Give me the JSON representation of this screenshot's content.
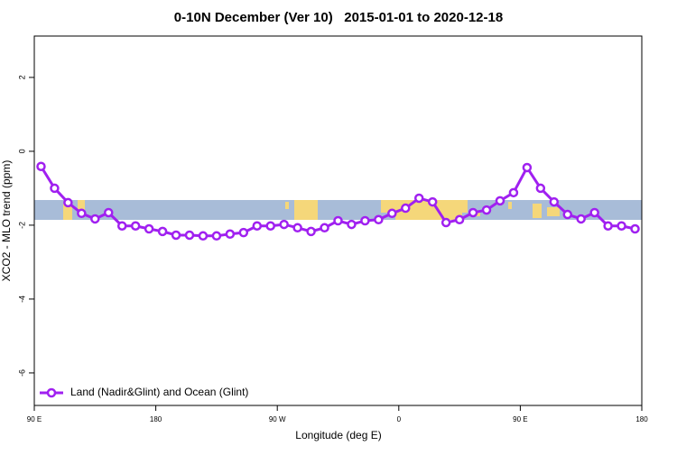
{
  "chart_data": {
    "type": "line",
    "title": "0-10N December (Ver 10)   2015-01-01 to 2020-12-18",
    "xlabel": "Longitude (deg E)",
    "ylabel": "XCO2 - MLO trend (ppm)",
    "x": [
      95,
      105,
      115,
      125,
      135,
      145,
      155,
      165,
      175,
      185,
      195,
      205,
      215,
      225,
      235,
      245,
      255,
      265,
      275,
      285,
      295,
      305,
      315,
      325,
      335,
      345,
      355,
      365,
      375,
      385,
      395,
      405,
      415,
      425,
      435,
      445,
      455,
      465,
      475,
      485,
      495,
      505,
      515,
      525,
      535
    ],
    "series": [
      {
        "name": "Land (Nadir&Glint) and Ocean (Glint)",
        "color": "#a020f0",
        "values": [
          -0.41,
          -1.0,
          -1.39,
          -1.68,
          -1.83,
          -1.66,
          -2.02,
          -2.02,
          -2.1,
          -2.17,
          -2.27,
          -2.27,
          -2.29,
          -2.29,
          -2.24,
          -2.2,
          -2.02,
          -2.02,
          -1.98,
          -2.07,
          -2.17,
          -2.07,
          -1.88,
          -1.98,
          -1.88,
          -1.85,
          -1.68,
          -1.54,
          -1.27,
          -1.37,
          -1.93,
          -1.85,
          -1.66,
          -1.59,
          -1.34,
          -1.12,
          -0.44,
          -1.0,
          -1.37,
          -1.71,
          -1.83,
          -1.66,
          -2.02,
          -2.02,
          -2.1
        ]
      }
    ],
    "xlim": [
      90,
      540
    ],
    "xticks": [
      {
        "value": 90,
        "label": "90 E"
      },
      180,
      {
        "value": 270,
        "label": "90 W"
      },
      {
        "value": 360,
        "label": "0"
      },
      {
        "value": 450,
        "label": "90 E"
      },
      {
        "value": 540,
        "label": "180"
      }
    ],
    "ylim": [
      -6.88,
      3.12
    ],
    "yticks": [
      -6,
      -4,
      -2,
      0,
      2
    ],
    "legend": "bottom-left"
  }
}
